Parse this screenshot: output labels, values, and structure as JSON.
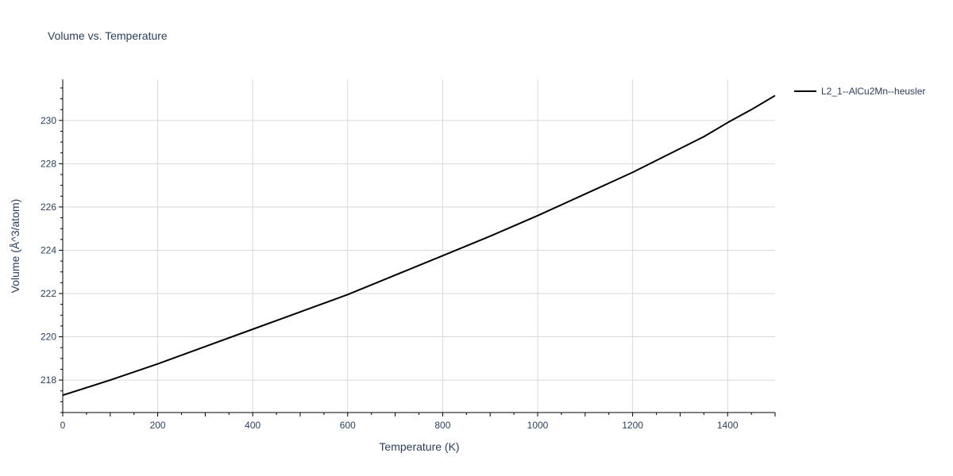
{
  "chart_data": {
    "type": "line",
    "title": "Volume vs. Temperature",
    "xlabel": "Temperature (K)",
    "ylabel": "Volume (Å^3/atom)",
    "xlim": [
      0,
      1500
    ],
    "ylim": [
      216.5,
      231.9
    ],
    "x_ticks": [
      0,
      200,
      400,
      600,
      800,
      1000,
      1200,
      1400
    ],
    "y_ticks": [
      218,
      220,
      222,
      224,
      226,
      228,
      230
    ],
    "grid": true,
    "legend_position": "top-right",
    "series": [
      {
        "name": "L2_1--AlCu2Mn--heusler",
        "color": "#000000",
        "x": [
          0,
          100,
          200,
          300,
          400,
          500,
          600,
          700,
          800,
          900,
          1000,
          1100,
          1200,
          1300,
          1350,
          1400,
          1450,
          1500
        ],
        "y": [
          217.3,
          218.0,
          218.75,
          219.55,
          220.35,
          221.15,
          221.95,
          222.85,
          223.75,
          224.65,
          225.6,
          226.6,
          227.6,
          228.7,
          229.25,
          229.9,
          230.5,
          231.15
        ]
      }
    ]
  }
}
